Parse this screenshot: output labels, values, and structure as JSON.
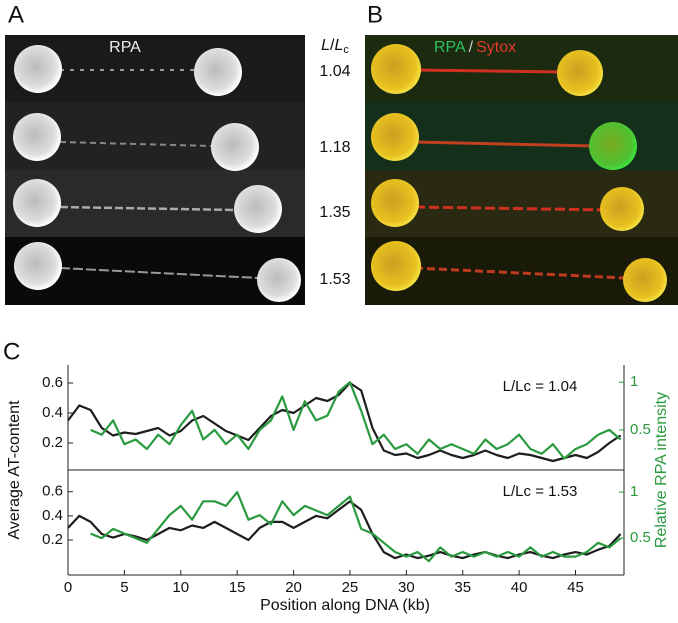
{
  "panels": {
    "A": {
      "label": "A",
      "channel": "RPA"
    },
    "B": {
      "label": "B",
      "channel_1": "RPA",
      "separator": "/",
      "channel_2": "Sytox"
    },
    "ratio_header": [
      "L",
      "/",
      "L",
      "c"
    ],
    "rows": [
      "1.04",
      "1.18",
      "1.35",
      "1.53"
    ],
    "C": {
      "label": "C"
    }
  },
  "chart_data": [
    {
      "type": "line",
      "annotation": "L/Lc = 1.04",
      "ylabel": "Average AT-content",
      "y2label": "Relative RPA intensity",
      "xlim": [
        0,
        49.3
      ],
      "ylim": [
        0.02,
        0.72
      ],
      "yticks": [
        0.2,
        0.4,
        0.6
      ],
      "y2lim": [
        0.08,
        1.18
      ],
      "y2ticks": [
        0.5,
        1
      ],
      "x": [
        0,
        1,
        2,
        3,
        4,
        5,
        6,
        7,
        8,
        9,
        10,
        11,
        12,
        13,
        14,
        15,
        16,
        17,
        18,
        19,
        20,
        21,
        22,
        23,
        24,
        25,
        26,
        27,
        28,
        29,
        30,
        31,
        32,
        33,
        34,
        35,
        36,
        37,
        38,
        39,
        40,
        41,
        42,
        43,
        44,
        45,
        46,
        47,
        48,
        49
      ],
      "series": [
        {
          "color": "#1e1e1e",
          "values": [
            0.35,
            0.45,
            0.42,
            0.3,
            0.25,
            0.27,
            0.26,
            0.28,
            0.3,
            0.25,
            0.28,
            0.35,
            0.38,
            0.33,
            0.28,
            0.25,
            0.22,
            0.3,
            0.38,
            0.42,
            0.4,
            0.45,
            0.5,
            0.48,
            0.52,
            0.6,
            0.55,
            0.3,
            0.15,
            0.12,
            0.13,
            0.1,
            0.12,
            0.15,
            0.12,
            0.1,
            0.12,
            0.15,
            0.12,
            0.1,
            0.13,
            0.12,
            0.1,
            0.08,
            0.1,
            0.12,
            0.1,
            0.14,
            0.2,
            0.25
          ]
        },
        {
          "color": "#2a9a3e",
          "axis": "y2",
          "values": [
            null,
            null,
            0.5,
            0.45,
            0.6,
            0.35,
            0.4,
            0.3,
            0.45,
            0.35,
            0.55,
            0.7,
            0.4,
            0.5,
            0.35,
            0.45,
            0.3,
            0.5,
            0.6,
            0.85,
            0.5,
            0.8,
            0.6,
            0.65,
            0.9,
            1.0,
            0.7,
            0.35,
            0.45,
            0.3,
            0.35,
            0.25,
            0.4,
            0.3,
            0.35,
            0.3,
            0.25,
            0.4,
            0.3,
            0.35,
            0.45,
            0.3,
            0.25,
            0.35,
            0.2,
            0.3,
            0.35,
            0.45,
            0.5,
            0.4
          ]
        }
      ]
    },
    {
      "type": "line",
      "annotation": "L/Lc = 1.53",
      "xlabel": "Position along DNA (kb)",
      "xlim": [
        0,
        49.3
      ],
      "xticks": [
        0,
        5,
        10,
        15,
        20,
        25,
        30,
        35,
        40,
        45
      ],
      "ylim": [
        -0.09,
        0.78
      ],
      "yticks": [
        0.2,
        0.4,
        0.6
      ],
      "y2lim": [
        0.1,
        1.24
      ],
      "y2ticks": [
        0.5,
        1
      ],
      "x": [
        0,
        1,
        2,
        3,
        4,
        5,
        6,
        7,
        8,
        9,
        10,
        11,
        12,
        13,
        14,
        15,
        16,
        17,
        18,
        19,
        20,
        21,
        22,
        23,
        24,
        25,
        26,
        27,
        28,
        29,
        30,
        31,
        32,
        33,
        34,
        35,
        36,
        37,
        38,
        39,
        40,
        41,
        42,
        43,
        44,
        45,
        46,
        47,
        48,
        49
      ],
      "series": [
        {
          "color": "#1e1e1e",
          "values": [
            0.3,
            0.4,
            0.35,
            0.25,
            0.22,
            0.25,
            0.23,
            0.2,
            0.25,
            0.3,
            0.28,
            0.32,
            0.3,
            0.35,
            0.3,
            0.25,
            0.2,
            0.3,
            0.35,
            0.35,
            0.3,
            0.35,
            0.4,
            0.38,
            0.45,
            0.52,
            0.45,
            0.25,
            0.1,
            0.05,
            0.08,
            0.05,
            0.07,
            0.1,
            0.07,
            0.05,
            0.08,
            0.1,
            0.07,
            0.05,
            0.08,
            0.1,
            0.07,
            0.05,
            0.08,
            0.1,
            0.08,
            0.12,
            0.15,
            0.25
          ]
        },
        {
          "color": "#2a9a3e",
          "axis": "y2",
          "values": [
            null,
            null,
            0.55,
            0.5,
            0.6,
            0.55,
            0.5,
            0.45,
            0.6,
            0.75,
            0.85,
            0.7,
            0.9,
            0.9,
            0.85,
            1.0,
            0.7,
            0.75,
            0.65,
            0.9,
            0.75,
            0.85,
            0.8,
            0.75,
            0.85,
            0.95,
            0.6,
            0.55,
            0.45,
            0.35,
            0.3,
            0.35,
            0.25,
            0.4,
            0.3,
            0.35,
            0.3,
            0.35,
            0.3,
            0.35,
            0.3,
            0.4,
            0.3,
            0.35,
            0.3,
            0.3,
            0.35,
            0.45,
            0.4,
            0.5
          ]
        }
      ]
    }
  ]
}
